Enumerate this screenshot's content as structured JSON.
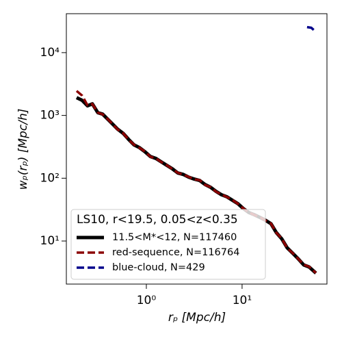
{
  "chart_data": {
    "type": "line",
    "xlabel": "rₚ [Mpc/h]",
    "ylabel": "wₚ(rₚ) [Mpc/h]",
    "xscale": "log",
    "yscale": "log",
    "xlim": [
      0.146,
      77
    ],
    "ylim": [
      2.06,
      41700
    ],
    "xticks": [
      {
        "value": 1,
        "label": "10⁰"
      },
      {
        "value": 10,
        "label": "10¹"
      }
    ],
    "yticks": [
      {
        "value": 10,
        "label": "10¹"
      },
      {
        "value": 100,
        "label": "10²"
      },
      {
        "value": 1000,
        "label": "10³"
      },
      {
        "value": 10000,
        "label": "10⁴"
      }
    ],
    "legend_title": "LS10, r<19.5, 0.05<z<0.35",
    "legend": "lower left",
    "series": [
      {
        "name": "11.5<M*<12, N=117460",
        "color": "#000000",
        "linestyle": "solid",
        "x": [
          0.187,
          0.213,
          0.243,
          0.273,
          0.311,
          0.349,
          0.398,
          0.447,
          0.501,
          0.572,
          0.652,
          0.743,
          0.849,
          0.968,
          1.1,
          1.26,
          1.44,
          1.64,
          1.87,
          2.13,
          2.43,
          2.77,
          3.16,
          3.61,
          4.11,
          4.69,
          5.35,
          6.11,
          6.96,
          7.94,
          9.06,
          10.3,
          11.8,
          13.4,
          15.3,
          17.5,
          20.0,
          22.8,
          26.0,
          29.6,
          33.8,
          38.5,
          44.0,
          50.1,
          59.1
        ],
        "values": [
          1920,
          1740,
          1420,
          1530,
          1105,
          1050,
          860,
          722,
          605,
          520,
          415,
          340,
          307,
          264,
          222,
          206,
          181,
          160,
          141,
          121,
          115,
          104,
          96.8,
          92,
          79.2,
          71.6,
          61.6,
          54.4,
          50.4,
          44.5,
          39.2,
          32.9,
          28.3,
          26.2,
          23.8,
          21.5,
          18.9,
          13.6,
          10.8,
          7.78,
          6.37,
          5.21,
          4.16,
          3.86,
          3.08
        ]
      },
      {
        "name": "red-sequence, N=116764",
        "color": "#8b0000",
        "linestyle": "dashed",
        "x": [
          0.187,
          0.213,
          0.243,
          0.273,
          0.311,
          0.349,
          0.398,
          0.447,
          0.501,
          0.572,
          0.652,
          0.743,
          0.849,
          0.968,
          1.1,
          1.26,
          1.44,
          1.64,
          1.87,
          2.13,
          2.43,
          2.77,
          3.16,
          3.61,
          4.11,
          4.69,
          5.35,
          6.11,
          6.96,
          7.94,
          9.06,
          10.3,
          11.8,
          13.4,
          15.3,
          17.5,
          20.0,
          22.8,
          26.0,
          29.6,
          33.8,
          38.5,
          44.0,
          50.1,
          59.1
        ],
        "values": [
          2460,
          2070,
          1450,
          1520,
          1110,
          1040,
          865,
          720,
          600,
          522,
          410,
          342,
          305,
          266,
          220,
          207,
          180,
          161,
          140,
          122,
          114,
          105,
          96,
          93,
          78,
          72,
          61,
          55,
          50,
          45,
          39,
          33,
          28.5,
          26,
          24,
          21.3,
          19,
          13.5,
          10.9,
          7.7,
          6.4,
          5.2,
          4.2,
          3.9,
          3.1
        ]
      },
      {
        "name": "blue-cloud, N=429",
        "color": "#00008b",
        "linestyle": "dashed",
        "x": [
          47.7,
          52.7,
          58.1
        ],
        "values": [
          25500,
          24900,
          21900
        ]
      }
    ]
  }
}
